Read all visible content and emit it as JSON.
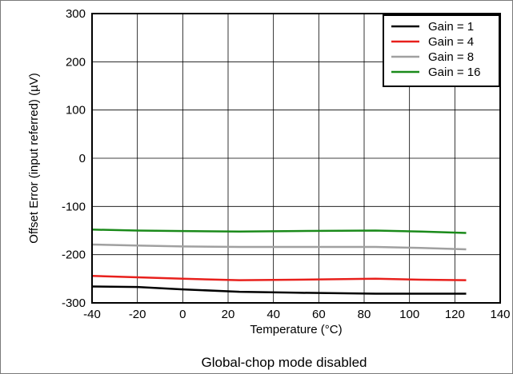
{
  "chart_data": {
    "type": "line",
    "title": "",
    "caption": "Global-chop mode disabled",
    "xlabel": "Temperature (°C)",
    "ylabel": "Offset Error (input referred) (µV)",
    "xlim": [
      -40,
      140
    ],
    "ylim": [
      -300,
      300
    ],
    "xticks": [
      -40,
      -20,
      0,
      20,
      40,
      60,
      80,
      100,
      120,
      140
    ],
    "yticks": [
      -300,
      -200,
      -100,
      0,
      100,
      200,
      300
    ],
    "grid": true,
    "legend_position": "top-right",
    "series": [
      {
        "name": "Gain = 1",
        "color": "#000000",
        "x": [
          -40,
          -20,
          0,
          25,
          50,
          85,
          105,
          125
        ],
        "y": [
          -266,
          -267,
          -272,
          -277,
          -279,
          -281,
          -281,
          -281
        ]
      },
      {
        "name": "Gain = 4",
        "color": "#e8201c",
        "x": [
          -40,
          -20,
          0,
          25,
          50,
          85,
          105,
          125
        ],
        "y": [
          -244,
          -247,
          -250,
          -253,
          -252,
          -250,
          -252,
          -253
        ]
      },
      {
        "name": "Gain = 8",
        "color": "#a0a0a0",
        "x": [
          -40,
          -20,
          0,
          25,
          50,
          85,
          105,
          125
        ],
        "y": [
          -179,
          -181,
          -183,
          -184,
          -184,
          -184,
          -186,
          -189
        ]
      },
      {
        "name": "Gain = 16",
        "color": "#1a8a1a",
        "x": [
          -40,
          -20,
          0,
          25,
          50,
          85,
          105,
          125
        ],
        "y": [
          -148,
          -150,
          -151,
          -152,
          -151,
          -150,
          -152,
          -155
        ]
      }
    ]
  }
}
